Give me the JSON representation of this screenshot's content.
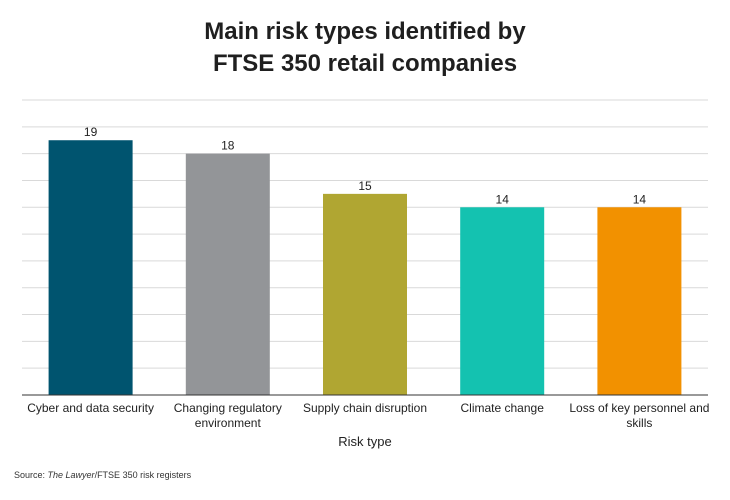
{
  "chart_data": {
    "type": "bar",
    "title_lines": [
      "Main risk types identified by",
      "FTSE 350 retail companies"
    ],
    "categories": [
      [
        "Cyber and data security"
      ],
      [
        "Changing regulatory",
        "environment"
      ],
      [
        "Supply chain disruption"
      ],
      [
        "Climate change"
      ],
      [
        "Loss of key personnel and",
        "skills"
      ]
    ],
    "values": [
      19,
      18,
      15,
      14,
      14
    ],
    "colors": [
      "#00546f",
      "#939598",
      "#b0a632",
      "#14c2b0",
      "#f29100"
    ],
    "xlabel": "Risk type",
    "ylim": [
      0,
      22
    ],
    "grid": true,
    "grid_step": 2
  },
  "source": {
    "prefix": "Source: ",
    "publication": "The Lawyer",
    "suffix": "/FTSE 350 risk registers"
  }
}
